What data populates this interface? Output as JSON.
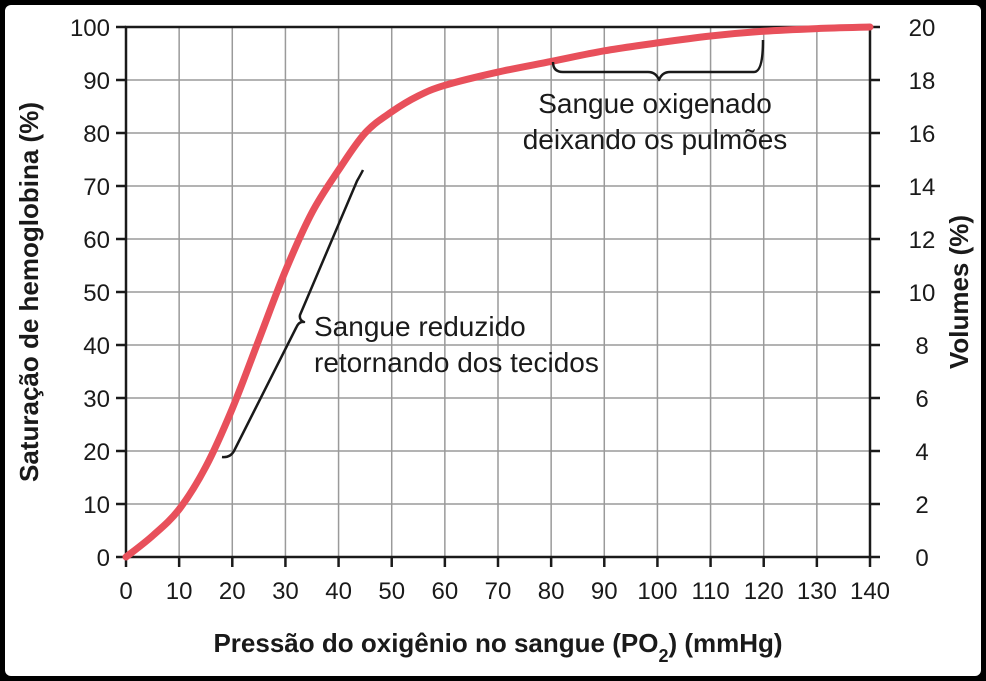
{
  "chart_data": {
    "type": "line",
    "xlabel": "Pressão do oxigênio no sangue (PO",
    "xlabel_sub": "2",
    "xlabel_tail": ") (mmHg)",
    "ylabel": "Saturação de hemoglobina (%)",
    "y2label": "Volumes (%)",
    "xlim": [
      0,
      140
    ],
    "ylim": [
      0,
      100
    ],
    "y2lim": [
      0,
      20
    ],
    "x_ticks": [
      0,
      10,
      20,
      30,
      40,
      50,
      60,
      70,
      80,
      90,
      100,
      110,
      120,
      130,
      140
    ],
    "y_ticks": [
      0,
      10,
      20,
      30,
      40,
      50,
      60,
      70,
      80,
      90,
      100
    ],
    "y2_ticks": [
      0,
      2,
      4,
      6,
      8,
      10,
      12,
      14,
      16,
      18,
      20
    ],
    "grid": true,
    "line_color": "#e8505b",
    "series": [
      {
        "x": [
          0,
          5,
          10,
          15,
          20,
          25,
          30,
          35,
          40,
          45,
          50,
          55,
          60,
          70,
          80,
          90,
          100,
          110,
          120,
          130,
          140
        ],
        "values": [
          0,
          4,
          9,
          17,
          28,
          41,
          54,
          65,
          73,
          80,
          84,
          87,
          89,
          91.5,
          93.5,
          95.5,
          97,
          98.3,
          99.2,
          99.7,
          100
        ]
      }
    ],
    "annotations": [
      {
        "lines": [
          "Sangue reduzido",
          "retornando dos tecidos"
        ],
        "range_x": [
          18,
          45
        ]
      },
      {
        "lines": [
          "Sangue oxigenado",
          "deixando os pulmões"
        ],
        "range_x": [
          81,
          120
        ]
      }
    ]
  }
}
